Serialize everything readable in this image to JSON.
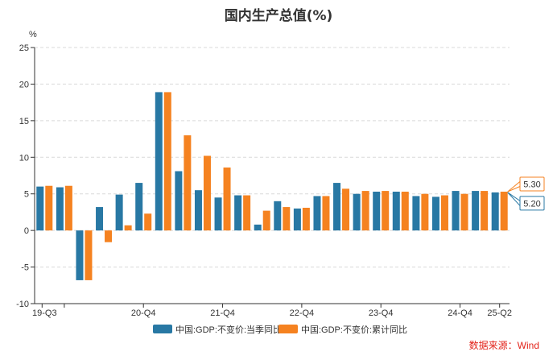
{
  "chart_data": {
    "type": "bar",
    "title": "国内生产总值(%)",
    "ylabel": "%",
    "ylim": [
      -10,
      25
    ],
    "yticks": [
      -10,
      -5,
      0,
      5,
      10,
      15,
      20,
      25
    ],
    "grid": true,
    "legend_position": "bottom",
    "categories": [
      "19-Q3",
      "19-Q4",
      "20-Q1",
      "20-Q2",
      "20-Q3",
      "20-Q4",
      "21-Q1",
      "21-Q2",
      "21-Q3",
      "21-Q4",
      "22-Q1",
      "22-Q2",
      "22-Q3",
      "22-Q4",
      "23-Q1",
      "23-Q2",
      "23-Q3",
      "23-Q4",
      "24-Q1",
      "24-Q2",
      "24-Q3",
      "24-Q4",
      "25-Q1",
      "25-Q2"
    ],
    "xtick_labels": [
      {
        "index": 0,
        "label": "19-Q3"
      },
      {
        "index": 5,
        "label": "20-Q4"
      },
      {
        "index": 9,
        "label": "21-Q4"
      },
      {
        "index": 13,
        "label": "22-Q4"
      },
      {
        "index": 17,
        "label": "23-Q4"
      },
      {
        "index": 21,
        "label": "24-Q4"
      },
      {
        "index": 23,
        "label": "25-Q2"
      }
    ],
    "series": [
      {
        "name": "中国:GDP:不变价:当季同比",
        "color": "#2878a4",
        "values": [
          6.0,
          5.9,
          -6.8,
          3.2,
          4.9,
          6.5,
          18.9,
          8.1,
          5.5,
          4.5,
          4.8,
          0.8,
          4.0,
          3.0,
          4.7,
          6.5,
          5.0,
          5.3,
          5.3,
          4.7,
          4.6,
          5.4,
          5.4,
          5.2
        ]
      },
      {
        "name": "中国:GDP:不变价:累计同比",
        "color": "#f58220",
        "values": [
          6.1,
          6.1,
          -6.8,
          -1.6,
          0.7,
          2.3,
          18.9,
          13.0,
          10.2,
          8.6,
          4.8,
          2.7,
          3.2,
          3.1,
          4.7,
          5.7,
          5.4,
          5.4,
          5.3,
          5.0,
          4.8,
          5.0,
          5.4,
          5.3
        ]
      }
    ],
    "annotations": [
      {
        "series": 1,
        "value": "5.30",
        "color": "#f58220"
      },
      {
        "series": 0,
        "value": "5.20",
        "color": "#2878a4"
      }
    ]
  },
  "source_text": "数据来源：Wind"
}
